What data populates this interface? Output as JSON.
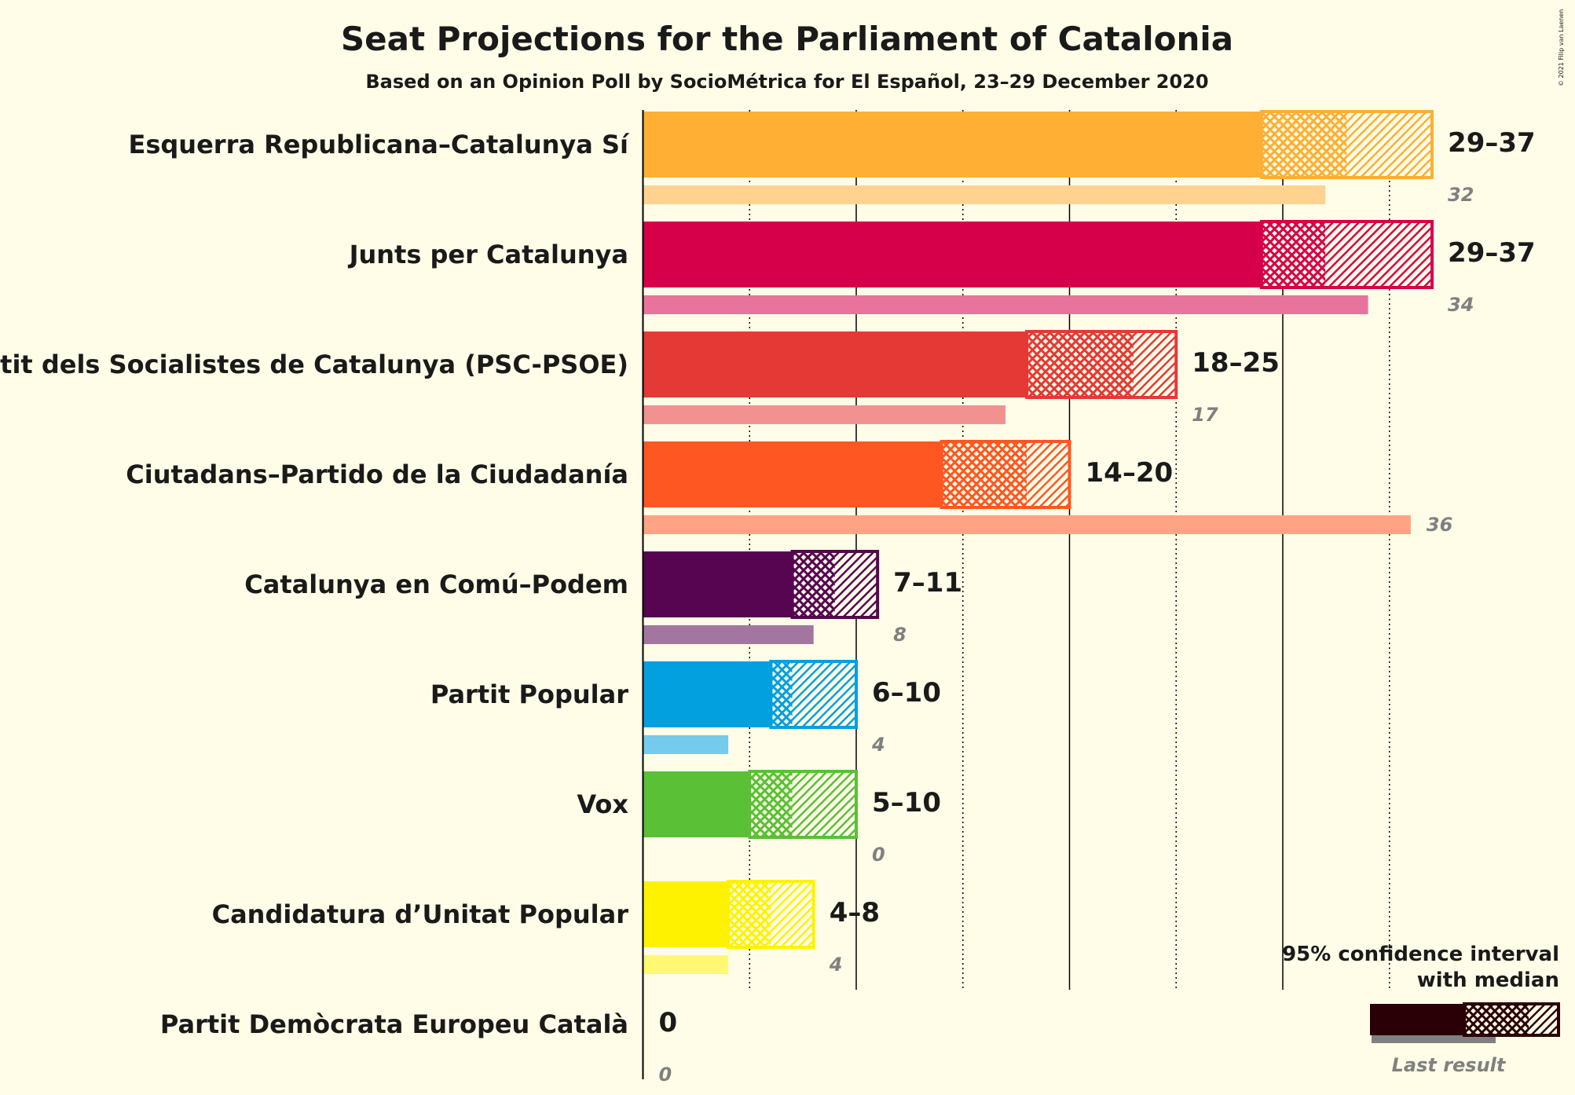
{
  "title": "Seat Projections for the Parliament of Catalonia",
  "subtitle": "Based on an Opinion Poll by SocioMétrica for El Español, 23–29 December 2020",
  "copyright": "© 2021 Filip van Laenen",
  "legend": {
    "title_line1": "95% confidence interval",
    "title_line2": "with median",
    "last_result": "Last result",
    "color": "#2A0006"
  },
  "chart_data": {
    "type": "bar",
    "orientation": "horizontal",
    "title": "Seat Projections for the Parliament of Catalonia",
    "subtitle": "Based on an Opinion Poll by SocioMétrica for El Español, 23–29 December 2020",
    "xlim": [
      0,
      37
    ],
    "grid": "vertical lines every 5 seats (solid at 10, 20, 30; dotted at 5, 15, 25, 35)",
    "series": [
      {
        "name": "Esquerra Republicana–Catalunya Sí",
        "low": 29,
        "median": 33,
        "high": 37,
        "range_label": "29–37",
        "last": 32,
        "last_label": "32",
        "color": "#FFAF33"
      },
      {
        "name": "Junts per Catalunya",
        "low": 29,
        "median": 32,
        "high": 37,
        "range_label": "29–37",
        "last": 34,
        "last_label": "34",
        "color": "#D6004A"
      },
      {
        "name": "Partit dels Socialistes de Catalunya (PSC-PSOE)",
        "low": 18,
        "median": 23,
        "high": 25,
        "range_label": "18–25",
        "last": 17,
        "last_label": "17",
        "color": "#E53935"
      },
      {
        "name": "Ciutadans–Partido de la Ciudadanía",
        "low": 14,
        "median": 18,
        "high": 20,
        "range_label": "14–20",
        "last": 36,
        "last_label": "36",
        "color": "#FF5722"
      },
      {
        "name": "Catalunya en Comú–Podem",
        "low": 7,
        "median": 9,
        "high": 11,
        "range_label": "7–11",
        "last": 8,
        "last_label": "8",
        "color": "#570551"
      },
      {
        "name": "Partit Popular",
        "low": 6,
        "median": 7,
        "high": 10,
        "range_label": "6–10",
        "last": 4,
        "last_label": "4",
        "color": "#03A0DF"
      },
      {
        "name": "Vox",
        "low": 5,
        "median": 7,
        "high": 10,
        "range_label": "5–10",
        "last": 0,
        "last_label": "0",
        "color": "#5AC035"
      },
      {
        "name": "Candidatura d’Unitat Popular",
        "low": 4,
        "median": 6,
        "high": 8,
        "range_label": "4–8",
        "last": 4,
        "last_label": "4",
        "color": "#FFF200"
      },
      {
        "name": "Partit Demòcrata Europeu Català",
        "low": 0,
        "median": 0,
        "high": 0,
        "range_label": "0",
        "last": 0,
        "last_label": "0",
        "color": "#1E3D8C"
      }
    ]
  }
}
